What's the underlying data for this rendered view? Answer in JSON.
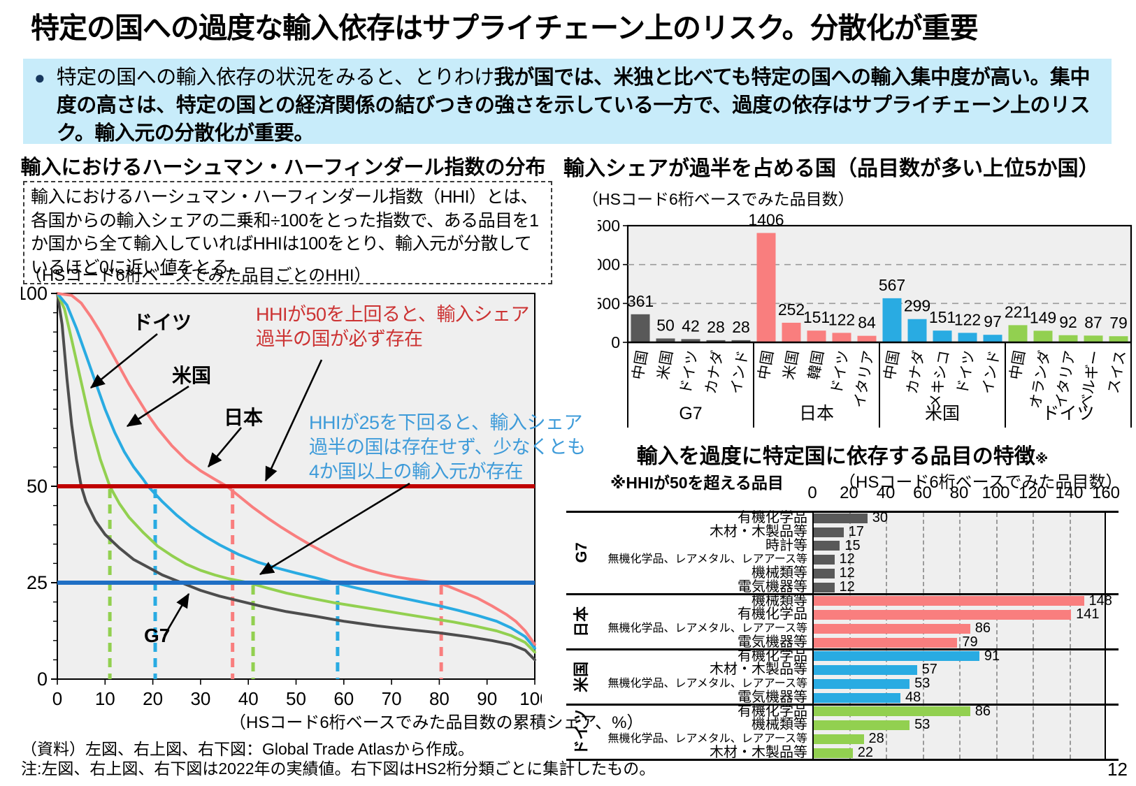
{
  "page_number": "12",
  "header": {
    "title": "特定の国への過度な輸入依存はサプライチェーン上のリスク。分散化が重要"
  },
  "lead": {
    "bullet": "●",
    "normal": "特定の国への輸入依存の状況をみると、とりわけ",
    "bold": "我が国では、米独と比べても特定の国への輸入集中度が高い。集中度の高さは、特定の国との経済関係の結びつきの強さを示している一方で、過度の依存はサプライチェーン上のリスク。輸入元の分散化が重要。"
  },
  "left_panel": {
    "title": "輸入におけるハーシュマン・ハーフィンダール指数の分布",
    "definition": "輸入におけるハーシュマン・ハーフィンダール指数（HHI）とは、各国からの輸入シェアの二乗和÷100をとった指数で、ある品目を1か国から全て輸入していればHHIは100をとり、輸入元が分散しているほど0に近い値をとる。",
    "y_caption": "（HSコード6桁ベースでみた品目ごとのHHI）",
    "x_caption": "（HSコード6桁ベースでみた品目数の累積シェア、%）",
    "annotation_hhi50": {
      "color": "#CC3333",
      "line1": "HHIが50を上回ると、輸入シェア",
      "line2": "過半の国が必ず存在"
    },
    "annotation_hhi25": {
      "color": "#3E9BD9",
      "line1": "HHIが25を下回ると、輸入シェア",
      "line2": "過半の国は存在せず、少なくとも",
      "line3": "4か国以上の輸入元が存在"
    }
  },
  "right_top": {
    "title": "輸入シェアが過半を占める国（品目数が多い上位5か国）",
    "caption": "（HSコード6桁ベースでみた品目数）"
  },
  "right_bottom": {
    "title": "輸入を過度に特定国に依存する品目の特徴",
    "title_mark": "※",
    "note_left": "※HHIが50を超える品目",
    "note_right": "（HSコード6桁ベースでみた品目数）"
  },
  "footer": {
    "source": "（資料）左図、右上図、右下図：Global Trade Atlasから作成。",
    "note": "注:左図、右上図、右下図は2022年の実績値。右下図はHS2桁分類ごとに集計したもの。"
  },
  "chart_data": [
    {
      "type": "line",
      "title": "輸入におけるハーシュマン・ハーフィンダール指数の分布",
      "xlabel": "（HSコード6桁ベースでみた品目数の累積シェア、%）",
      "ylabel": "（HSコード6桁ベースでみた品目ごとのHHI）",
      "xlim": [
        0,
        100
      ],
      "ylim": [
        0,
        100
      ],
      "xticks": [
        0,
        10,
        20,
        30,
        40,
        50,
        60,
        70,
        80,
        90,
        100
      ],
      "yticks": [
        0,
        25,
        50,
        100
      ],
      "grid": false,
      "plot_bg": "#EFEFEF",
      "reference_lines": [
        {
          "value": 50,
          "color": "#C00000",
          "meaning": "HHI=50"
        },
        {
          "value": 25,
          "color": "#1F6FC4",
          "meaning": "HHI=25"
        }
      ],
      "series": [
        {
          "id": "g7",
          "name": "G7",
          "color": "#4D4D4D",
          "points": [
            [
              0,
              100
            ],
            [
              1,
              92
            ],
            [
              2,
              78
            ],
            [
              3,
              66
            ],
            [
              4,
              57
            ],
            [
              5,
              50
            ],
            [
              6,
              46
            ],
            [
              8,
              41
            ],
            [
              10,
              37.5
            ],
            [
              13,
              34
            ],
            [
              16,
              31
            ],
            [
              19,
              29
            ],
            [
              22,
              27
            ],
            [
              25,
              25.5
            ],
            [
              27,
              24.5
            ],
            [
              30,
              23
            ],
            [
              34,
              21.5
            ],
            [
              38,
              20.3
            ],
            [
              43,
              18.8
            ],
            [
              48,
              17.5
            ],
            [
              54,
              16.3
            ],
            [
              60,
              15
            ],
            [
              67,
              13.8
            ],
            [
              74,
              12.8
            ],
            [
              80,
              12
            ],
            [
              86,
              11
            ],
            [
              91,
              10
            ],
            [
              95,
              9
            ],
            [
              98,
              7.5
            ],
            [
              100,
              5
            ]
          ]
        },
        {
          "id": "germany",
          "name": "ドイツ",
          "color": "#92D050",
          "points": [
            [
              0,
              100
            ],
            [
              1.5,
              96
            ],
            [
              3,
              88
            ],
            [
              5,
              77
            ],
            [
              7,
              66
            ],
            [
              9,
              57
            ],
            [
              11,
              50
            ],
            [
              13,
              45.5
            ],
            [
              15,
              42
            ],
            [
              18,
              38
            ],
            [
              21,
              34.5
            ],
            [
              24,
              32
            ],
            [
              27,
              29.8
            ],
            [
              30,
              28.2
            ],
            [
              33,
              27
            ],
            [
              36,
              26
            ],
            [
              40,
              25
            ],
            [
              44,
              23.6
            ],
            [
              48,
              22.3
            ],
            [
              53,
              21
            ],
            [
              58,
              19.8
            ],
            [
              63,
              18.8
            ],
            [
              68,
              17.8
            ],
            [
              73,
              16.8
            ],
            [
              78,
              15.8
            ],
            [
              83,
              14.8
            ],
            [
              88,
              13.6
            ],
            [
              92,
              12.5
            ],
            [
              95,
              11.3
            ],
            [
              98,
              9.5
            ],
            [
              100,
              7
            ]
          ]
        },
        {
          "id": "us",
          "name": "米国",
          "color": "#29ABE2",
          "points": [
            [
              0,
              100
            ],
            [
              2,
              97
            ],
            [
              4,
              91
            ],
            [
              6,
              84
            ],
            [
              8,
              77
            ],
            [
              10,
              70
            ],
            [
              12,
              64
            ],
            [
              14,
              59
            ],
            [
              16,
              55
            ],
            [
              18,
              51.8
            ],
            [
              19,
              50
            ],
            [
              22,
              46
            ],
            [
              25,
              42.5
            ],
            [
              28,
              39.5
            ],
            [
              31,
              37
            ],
            [
              34,
              34.8
            ],
            [
              38,
              32.3
            ],
            [
              42,
              30.3
            ],
            [
              46,
              28.8
            ],
            [
              50,
              27.5
            ],
            [
              54,
              26.3
            ],
            [
              58,
              25
            ],
            [
              62,
              23.8
            ],
            [
              66,
              22.7
            ],
            [
              70,
              21.6
            ],
            [
              75,
              20.3
            ],
            [
              80,
              19
            ],
            [
              84,
              17.8
            ],
            [
              88,
              16.5
            ],
            [
              92,
              15
            ],
            [
              95,
              13.3
            ],
            [
              98,
              11
            ],
            [
              100,
              8
            ]
          ]
        },
        {
          "id": "japan",
          "name": "日本",
          "color": "#F97E7E",
          "points": [
            [
              0,
              100
            ],
            [
              3,
              99.5
            ],
            [
              5,
              97.5
            ],
            [
              7,
              94
            ],
            [
              9,
              90
            ],
            [
              11,
              85.5
            ],
            [
              13,
              81
            ],
            [
              15,
              76.5
            ],
            [
              17,
              72.5
            ],
            [
              19,
              68.5
            ],
            [
              21,
              65
            ],
            [
              24,
              60.5
            ],
            [
              27,
              56.8
            ],
            [
              30,
              54
            ],
            [
              33,
              51.8
            ],
            [
              35.5,
              50
            ],
            [
              38,
              47.5
            ],
            [
              41,
              44.5
            ],
            [
              44,
              41.8
            ],
            [
              47,
              39.3
            ],
            [
              50,
              37
            ],
            [
              53,
              34.8
            ],
            [
              56,
              32.8
            ],
            [
              59,
              31
            ],
            [
              62,
              29.5
            ],
            [
              65,
              28.3
            ],
            [
              68,
              27.3
            ],
            [
              71,
              26.5
            ],
            [
              74,
              25.9
            ],
            [
              77,
              25.4
            ],
            [
              79.5,
              25
            ],
            [
              82,
              24
            ],
            [
              85,
              22.5
            ],
            [
              88,
              21
            ],
            [
              91,
              19
            ],
            [
              94,
              16.8
            ],
            [
              96,
              15
            ],
            [
              98,
              12.5
            ],
            [
              100,
              9
            ]
          ]
        }
      ],
      "drop_lines": [
        {
          "series": "ドイツ",
          "x": 11,
          "from": 50,
          "color": "#92D050"
        },
        {
          "series": "米国",
          "x": 20.5,
          "from": 50,
          "color": "#29ABE2"
        },
        {
          "series": "日本",
          "x": 36.7,
          "from": 50,
          "color": "#F97E7E"
        },
        {
          "series": "ドイツ",
          "x": 41,
          "from": 25,
          "color": "#92D050"
        },
        {
          "series": "米国",
          "x": 58.7,
          "from": 25,
          "color": "#29ABE2"
        },
        {
          "series": "日本",
          "x": 80.4,
          "from": 25,
          "color": "#F97E7E"
        }
      ]
    },
    {
      "type": "bar",
      "title": "輸入シェアが過半を占める国（品目数が多い上位5か国）",
      "ylabel": "（HSコード6桁ベースでみた品目数）",
      "ylim": [
        0,
        1500
      ],
      "yticks": [
        0,
        500,
        1000,
        1500
      ],
      "gridlines": [
        500,
        1000
      ],
      "plot_bg": "#EFEFEF",
      "groups": [
        {
          "name": "G7",
          "color": "#595959",
          "bars": [
            {
              "label": "中国",
              "value": 361
            },
            {
              "label": "米国",
              "value": 50
            },
            {
              "label": "ドイツ",
              "value": 42
            },
            {
              "label": "カナダ",
              "value": 28
            },
            {
              "label": "インド",
              "value": 28
            }
          ]
        },
        {
          "name": "日本",
          "color": "#F97E7E",
          "bars": [
            {
              "label": "中国",
              "value": 1406
            },
            {
              "label": "米国",
              "value": 252
            },
            {
              "label": "韓国",
              "value": 151
            },
            {
              "label": "ドイツ",
              "value": 122
            },
            {
              "label": "イタリア",
              "value": 84
            }
          ]
        },
        {
          "name": "米国",
          "color": "#29ABE2",
          "bars": [
            {
              "label": "中国",
              "value": 567
            },
            {
              "label": "カナダ",
              "value": 299
            },
            {
              "label": "メキシコ",
              "value": 151
            },
            {
              "label": "ドイツ",
              "value": 122
            },
            {
              "label": "インド",
              "value": 97
            }
          ]
        },
        {
          "name": "ドイツ",
          "color": "#92D050",
          "bars": [
            {
              "label": "中国",
              "value": 221
            },
            {
              "label": "オランダ",
              "value": 149
            },
            {
              "label": "イタリア",
              "value": 92
            },
            {
              "label": "ベルギー",
              "value": 87
            },
            {
              "label": "スイス",
              "value": 79
            }
          ]
        }
      ]
    },
    {
      "type": "bar",
      "orientation": "horizontal",
      "title": "輸入を過度に特定国に依存する品目の特徴",
      "note": "※HHIが50を超える品目",
      "xlabel": "（HSコード6桁ベースでみた品目数）",
      "xlim": [
        0,
        160
      ],
      "xticks": [
        0,
        20,
        40,
        60,
        80,
        100,
        120,
        140,
        160
      ],
      "plot_bg": "#EFEFEF",
      "groups": [
        {
          "name": "G7",
          "color": "#595959",
          "bars": [
            {
              "label": "有機化学品",
              "value": 30
            },
            {
              "label": "木材・木製品等",
              "value": 17
            },
            {
              "label": "時計等",
              "value": 15
            },
            {
              "label": "無機化学品、レアメタル、レアアース等",
              "value": 12
            },
            {
              "label": "機械類等",
              "value": 12
            },
            {
              "label": "電気機器等",
              "value": 12
            }
          ]
        },
        {
          "name": "日本",
          "color": "#F97E7E",
          "bars": [
            {
              "label": "機械類等",
              "value": 148
            },
            {
              "label": "有機化学品",
              "value": 141
            },
            {
              "label": "無機化学品、レアメタル、レアアース等",
              "value": 86
            },
            {
              "label": "電気機器等",
              "value": 79
            }
          ]
        },
        {
          "name": "米国",
          "color": "#29ABE2",
          "bars": [
            {
              "label": "有機化学品",
              "value": 91
            },
            {
              "label": "木材・木製品等",
              "value": 57
            },
            {
              "label": "無機化学品、レアメタル、レアアース等",
              "value": 53
            },
            {
              "label": "電気機器等",
              "value": 48
            }
          ]
        },
        {
          "name": "ドイツ",
          "color": "#92D050",
          "bars": [
            {
              "label": "有機化学品",
              "value": 86
            },
            {
              "label": "機械類等",
              "value": 53
            },
            {
              "label": "無機化学品、レアメタル、レアアース等",
              "value": 28
            },
            {
              "label": "木材・木製品等",
              "value": 22
            }
          ]
        }
      ]
    }
  ]
}
